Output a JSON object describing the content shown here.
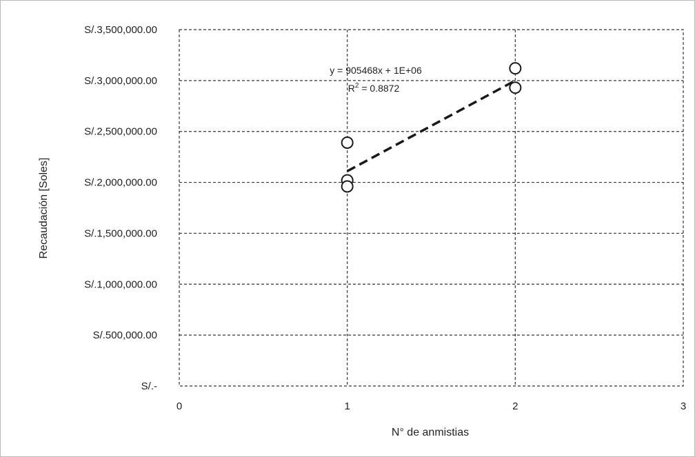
{
  "chart_data": {
    "type": "scatter",
    "xlabel": "N° de anmistias",
    "ylabel": "Recaudación [Soles]",
    "xlim": [
      0,
      3
    ],
    "ylim": [
      0,
      3500000
    ],
    "x_ticks": [
      "0",
      "1",
      "2",
      "3"
    ],
    "y_ticks": [
      "S/.-",
      "S/.500,000.00",
      "S/.1,000,000.00",
      "S/.1,500,000.00",
      "S/.2,000,000.00",
      "S/.2,500,000.00",
      "S/.3,000,000.00",
      "S/.3,500,000.00"
    ],
    "grid": true,
    "points": [
      {
        "x": 1,
        "y": 2390000
      },
      {
        "x": 1,
        "y": 2020000
      },
      {
        "x": 1,
        "y": 1960000
      },
      {
        "x": 2,
        "y": 3120000
      },
      {
        "x": 2,
        "y": 2930000
      }
    ],
    "trendline": {
      "x": [
        1,
        2
      ],
      "y": [
        2110000,
        3000000
      ],
      "equation": "y = 905468x + 1E+06",
      "r2_prefix": "R",
      "r2_exp": "2",
      "r2_value": " = 0.8872"
    }
  }
}
